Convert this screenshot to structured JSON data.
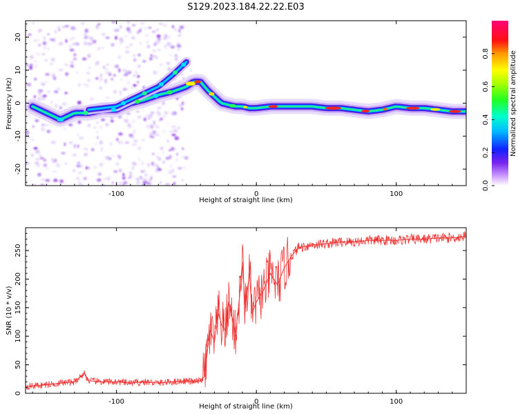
{
  "title": "S129.2023.184.22.22.E03",
  "chart_data": [
    {
      "type": "heatmap",
      "panel": "spectrogram",
      "xlabel": "Height of straight line (km)",
      "ylabel": "Frequency (Hz)",
      "xlim": [
        -165,
        150
      ],
      "ylim": [
        -25,
        25
      ],
      "xticks": [
        -100,
        0,
        100
      ],
      "yticks": [
        -20,
        -10,
        0,
        10,
        20
      ],
      "grid": false,
      "colormap": "rainbow (white to purple, blue, cyan, green, yellow, red, magenta)",
      "colorbar": {
        "label": "Normalized spectral amplitude",
        "range": [
          0,
          1
        ],
        "ticks": [
          "0.0",
          "0.2",
          "0.4",
          "0.6",
          "0.8"
        ]
      },
      "ridge": {
        "description": "main high-amplitude frequency track versus height",
        "x": [
          -160,
          -140,
          -130,
          -120,
          -110,
          -100,
          -90,
          -80,
          -70,
          -60,
          -50,
          -45,
          -40,
          -35,
          -30,
          -25,
          -20,
          -15,
          -10,
          -5,
          0,
          10,
          20,
          30,
          40,
          50,
          60,
          70,
          80,
          90,
          100,
          110,
          120,
          130,
          140,
          150
        ],
        "y": [
          -1,
          -5,
          -3,
          -3,
          -2,
          -2,
          0,
          1,
          2.5,
          3.5,
          5,
          6.5,
          6.5,
          4,
          2,
          0,
          -0.5,
          -1,
          -1,
          -1.5,
          -1.5,
          -1,
          -1,
          -1,
          -1,
          -1.5,
          -1.5,
          -2,
          -2.5,
          -2,
          -1,
          -1.5,
          -1.5,
          -2,
          -2.5,
          -2.5
        ]
      },
      "secondary_ridge": {
        "description": "upper branch before -50 km",
        "x": [
          -120,
          -100,
          -90,
          -80,
          -70,
          -60,
          -50
        ],
        "y": [
          -2,
          -1,
          1,
          3,
          5,
          8.5,
          12.5
        ]
      }
    },
    {
      "type": "line",
      "panel": "snr",
      "xlabel": "Height of straight line (km)",
      "ylabel": "SNR (10 * v/v)",
      "xlim": [
        -165,
        150
      ],
      "ylim": [
        0,
        290
      ],
      "xticks": [
        -100,
        0,
        100
      ],
      "yticks": [
        0,
        50,
        100,
        150,
        200,
        250
      ],
      "grid": false,
      "color": "#ee3333",
      "series": [
        {
          "x": [
            -165,
            -150,
            -140,
            -130,
            -123,
            -120,
            -110,
            -100,
            -90,
            -80,
            -70,
            -60,
            -50,
            -45,
            -40,
            -37,
            -35,
            -33,
            -30,
            -27,
            -25,
            -22,
            -20,
            -17,
            -15,
            -12,
            -10,
            -8,
            -5,
            -3,
            0,
            5,
            10,
            15,
            20,
            25,
            30,
            40,
            50,
            60,
            70,
            80,
            90,
            100,
            110,
            120,
            130,
            140,
            150
          ],
          "y": [
            12,
            15,
            18,
            20,
            35,
            22,
            20,
            20,
            18,
            20,
            18,
            20,
            22,
            20,
            22,
            30,
            75,
            110,
            90,
            140,
            120,
            110,
            160,
            130,
            100,
            170,
            230,
            150,
            210,
            140,
            160,
            180,
            210,
            190,
            220,
            240,
            255,
            260,
            262,
            265,
            265,
            268,
            268,
            268,
            270,
            270,
            272,
            272,
            275
          ]
        }
      ]
    }
  ]
}
